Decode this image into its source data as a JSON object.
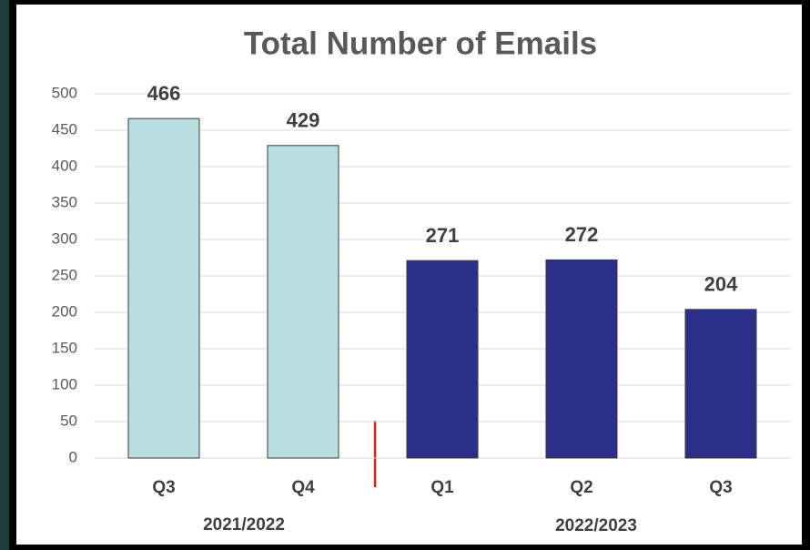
{
  "chart_data": {
    "type": "bar",
    "title": "Total Number of Emails",
    "categories": [
      "Q3",
      "Q4",
      "Q1",
      "Q2",
      "Q3"
    ],
    "groups": [
      "2021/2022",
      "2022/2023"
    ],
    "values": [
      466,
      429,
      271,
      272,
      204
    ],
    "colors": [
      "#b8dedf",
      "#b8dedf",
      "#2b2f8a",
      "#2b2f8a",
      "#2b2f8a"
    ],
    "ylim": [
      0,
      500
    ],
    "yticks": [
      0,
      50,
      100,
      150,
      200,
      250,
      300,
      350,
      400,
      450,
      500
    ],
    "grid": true
  }
}
